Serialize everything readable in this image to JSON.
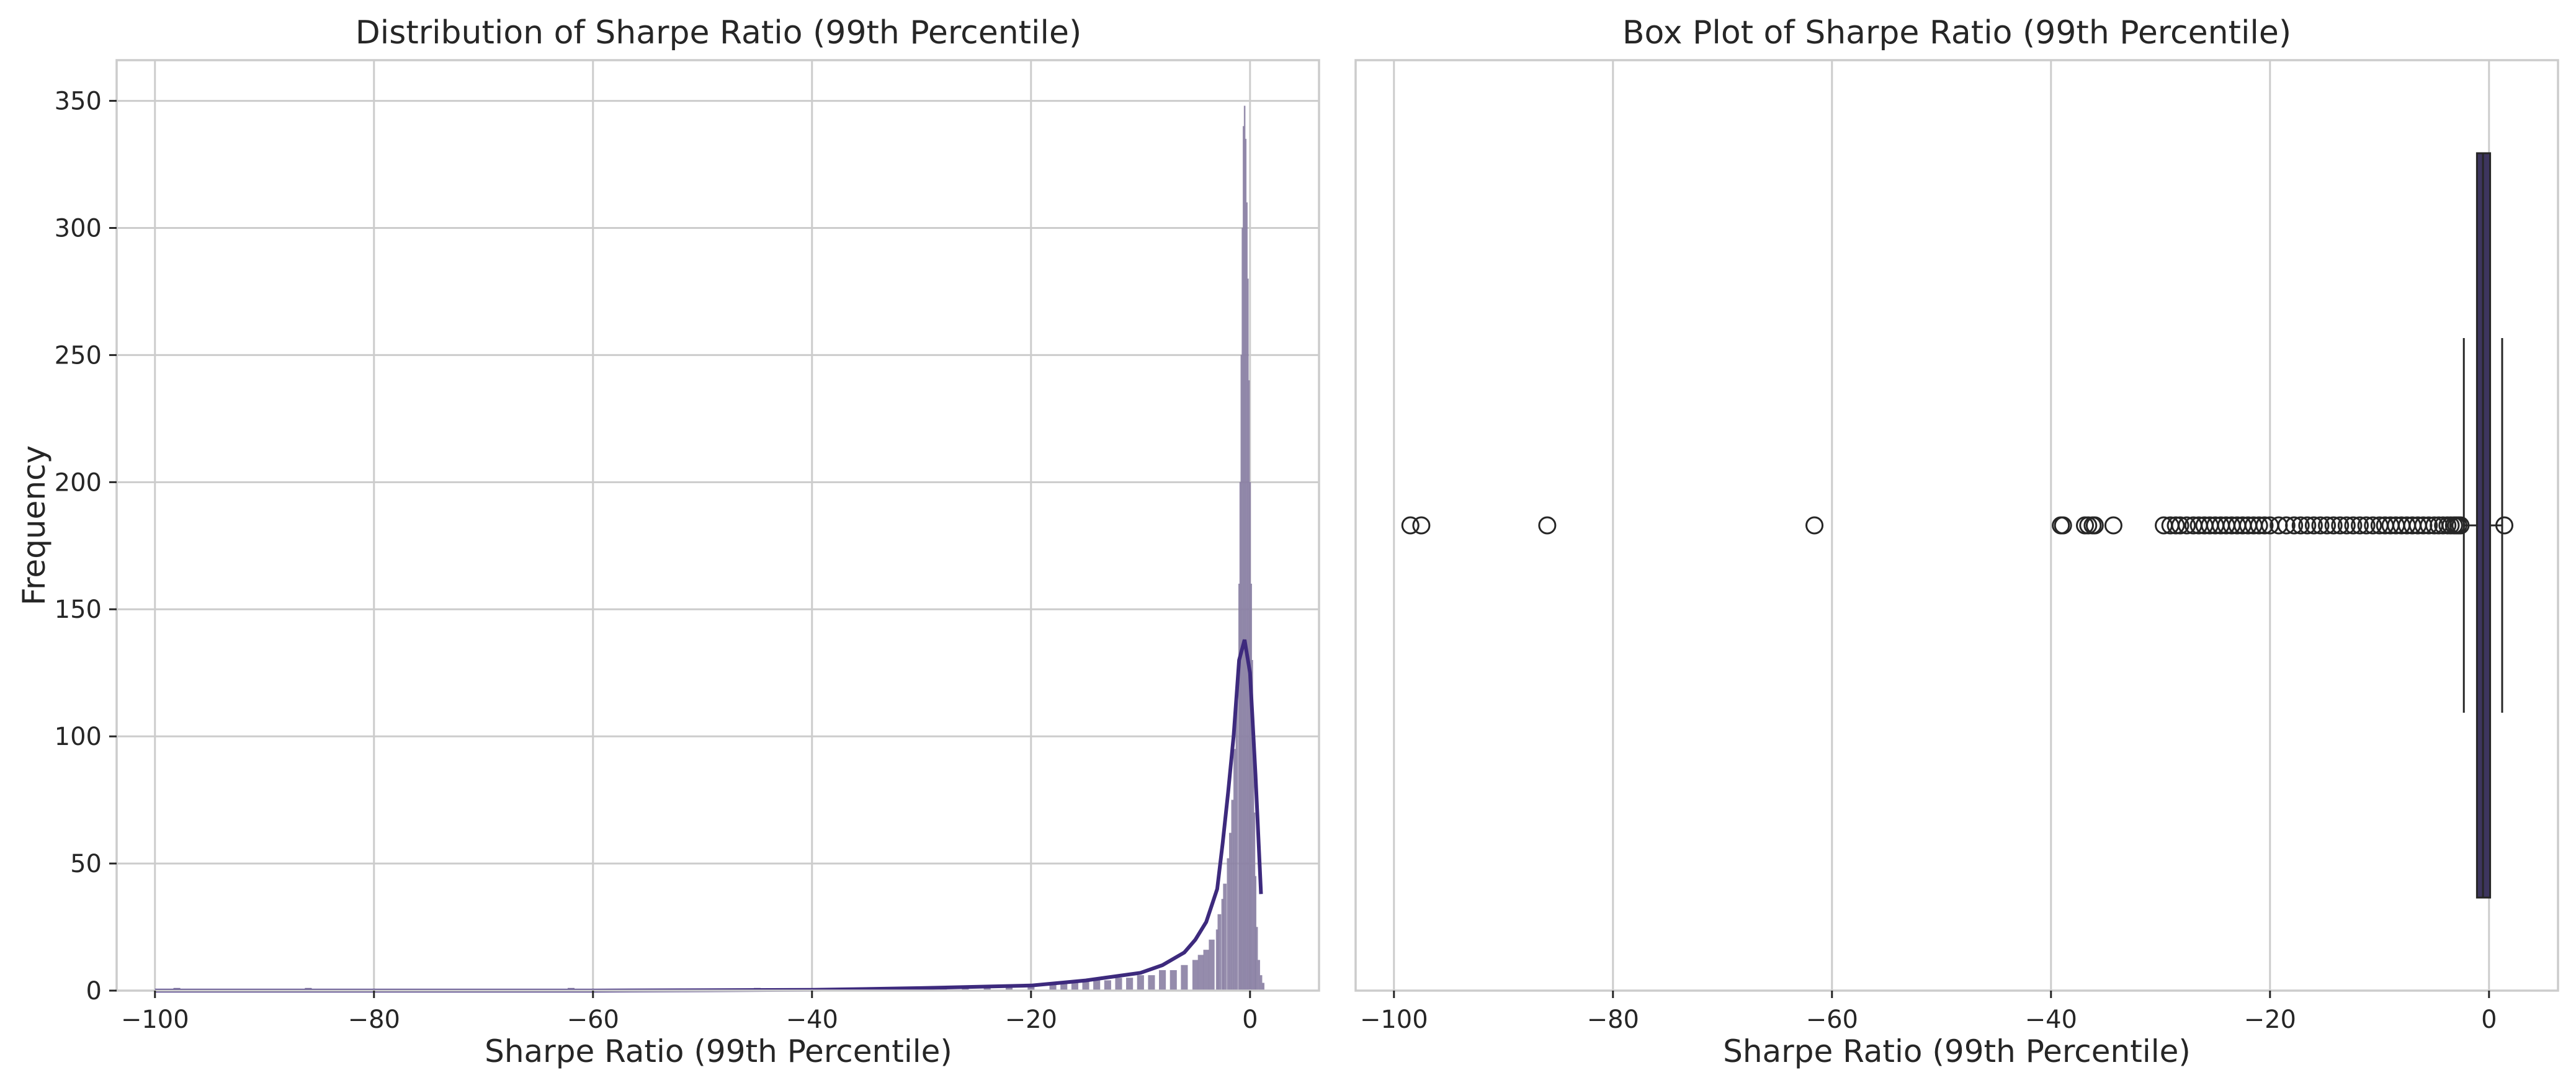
{
  "chart_data": [
    {
      "type": "histogram",
      "title": "Distribution of Sharpe Ratio (99th Percentile)",
      "xlabel": "Sharpe Ratio (99th Percentile)",
      "ylabel": "Frequency",
      "xlim": [
        -103.5,
        6.3
      ],
      "ylim": [
        0,
        366
      ],
      "xticks": [
        -100,
        -80,
        -60,
        -40,
        -20,
        0
      ],
      "yticks": [
        0,
        50,
        100,
        150,
        200,
        250,
        300,
        350
      ],
      "grid": true,
      "bar_color": "#8a80a4",
      "kde_color": "#3d2a7d",
      "bins": {
        "x": [
          -98,
          -86,
          -62,
          -45,
          -38,
          -34,
          -30,
          -28,
          -26,
          -24,
          -22,
          -20,
          -18,
          -17,
          -16,
          -15,
          -14,
          -13,
          -12,
          -11,
          -10,
          -9,
          -8,
          -7,
          -6,
          -5,
          -4.5,
          -4,
          -3.5,
          -3,
          -2.8,
          -2.5,
          -2.3,
          -2,
          -1.8,
          -1.6,
          -1.4,
          -1.2,
          -1,
          -0.9,
          -0.8,
          -0.7,
          -0.6,
          -0.5,
          -0.4,
          -0.3,
          -0.2,
          -0.1,
          0,
          0.1,
          0.2,
          0.3,
          0.4,
          0.5,
          0.6,
          0.8,
          1,
          1.2
        ],
        "y": [
          1,
          1,
          1,
          1,
          1,
          1,
          1,
          1,
          1,
          2,
          2,
          2,
          3,
          3,
          3,
          4,
          4,
          4,
          5,
          5,
          6,
          6,
          8,
          8,
          10,
          12,
          14,
          16,
          20,
          24,
          30,
          36,
          42,
          52,
          62,
          75,
          95,
          120,
          160,
          200,
          250,
          300,
          340,
          348,
          335,
          310,
          280,
          240,
          200,
          160,
          130,
          100,
          70,
          45,
          25,
          12,
          6,
          3
        ]
      },
      "kde": {
        "x": [
          -100,
          -60,
          -40,
          -30,
          -20,
          -15,
          -10,
          -8,
          -6,
          -5,
          -4,
          -3,
          -2.5,
          -2,
          -1.5,
          -1,
          -0.5,
          0,
          0.5,
          1
        ],
        "y": [
          0,
          0,
          0.3,
          1,
          2,
          4,
          7,
          10,
          15,
          20,
          27,
          40,
          58,
          78,
          100,
          130,
          138,
          125,
          85,
          38
        ]
      }
    },
    {
      "type": "box",
      "title": "Box Plot of Sharpe Ratio (99th Percentile)",
      "xlabel": "Sharpe Ratio (99th Percentile)",
      "xlim": [
        -103.5,
        6.3
      ],
      "xticks": [
        -100,
        -80,
        -60,
        -40,
        -20,
        0
      ],
      "grid": true,
      "box_color": "#3d355e",
      "whisker_low": -2.3,
      "q1": -1.1,
      "median": -0.55,
      "q3": 0.1,
      "whisker_high": 1.2,
      "outliers": [
        -98.5,
        -97.5,
        -86,
        -61.6,
        -39.1,
        -38.9,
        -36.9,
        -36.6,
        -36.2,
        -36.0,
        -34.3,
        -29.7,
        -29.1,
        -28.6,
        -28.2,
        -27.6,
        -27.0,
        -26.5,
        -26.0,
        -25.5,
        -25.0,
        -24.5,
        -24.0,
        -23.5,
        -23.0,
        -22.5,
        -22.0,
        -21.5,
        -21.0,
        -20.5,
        -20.0,
        -19.2,
        -18.5,
        -17.8,
        -17.2,
        -16.6,
        -16.0,
        -15.4,
        -14.8,
        -14.2,
        -13.6,
        -13.0,
        -12.4,
        -11.8,
        -11.2,
        -10.6,
        -10.0,
        -9.5,
        -9.0,
        -8.5,
        -8.0,
        -7.5,
        -7.0,
        -6.5,
        -6.0,
        -5.5,
        -5.0,
        -4.6,
        -4.2,
        -3.8,
        -3.5,
        -3.2,
        -3.0,
        -2.8,
        -2.6,
        1.4
      ]
    }
  ]
}
